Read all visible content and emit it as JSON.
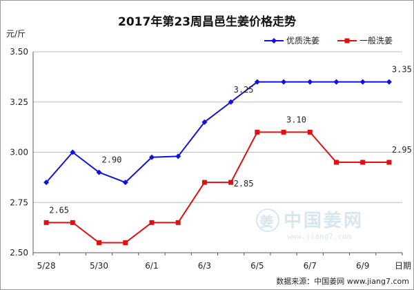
{
  "chart_data": {
    "type": "line",
    "title": "2017年第23周昌邑生姜价格走势",
    "ylabel": "元/斤",
    "xlabel": "日期",
    "ylim": [
      2.5,
      3.5
    ],
    "yticks": [
      "2.50",
      "2.75",
      "3.00",
      "3.25",
      "3.50"
    ],
    "x": [
      "5/28",
      "5/29",
      "5/30",
      "5/31",
      "6/1",
      "6/2",
      "6/3",
      "6/4",
      "6/5",
      "6/6",
      "6/7",
      "6/8",
      "6/9",
      "6/10"
    ],
    "xtick_labels": [
      "5/28",
      "5/30",
      "6/1",
      "6/3",
      "6/5",
      "6/7",
      "6/9"
    ],
    "grid": "horizontal",
    "legend_position": "top-right",
    "series": [
      {
        "name": "优质洗姜",
        "color": "#1010e0",
        "marker": "diamond",
        "values": [
          2.85,
          3.0,
          2.9,
          2.85,
          2.975,
          2.98,
          3.15,
          3.25,
          3.35,
          3.35,
          3.35,
          3.35,
          3.35,
          3.35
        ]
      },
      {
        "name": "一般洗姜",
        "color": "#e01010",
        "marker": "square",
        "values": [
          2.65,
          2.65,
          2.55,
          2.55,
          2.65,
          2.65,
          2.85,
          2.85,
          3.1,
          3.1,
          3.1,
          2.95,
          2.95,
          2.95
        ]
      }
    ],
    "annotations": [
      {
        "series": 0,
        "index": 2,
        "text": "2.90"
      },
      {
        "series": 0,
        "index": 13,
        "text": "3.35"
      },
      {
        "series": 1,
        "index": 0,
        "text": "2.65"
      },
      {
        "series": 1,
        "index": 7,
        "text": "2.85"
      },
      {
        "series": 0,
        "index": 7,
        "text": "3.25"
      },
      {
        "series": 1,
        "index": 9,
        "text": "3.10"
      },
      {
        "series": 1,
        "index": 13,
        "text": "2.95"
      }
    ]
  },
  "watermark": {
    "logo_text": "姜",
    "name": "中国姜网",
    "url": "www.jiang7.com"
  },
  "source": "数据来源：中国姜网 www.jiang7.com"
}
